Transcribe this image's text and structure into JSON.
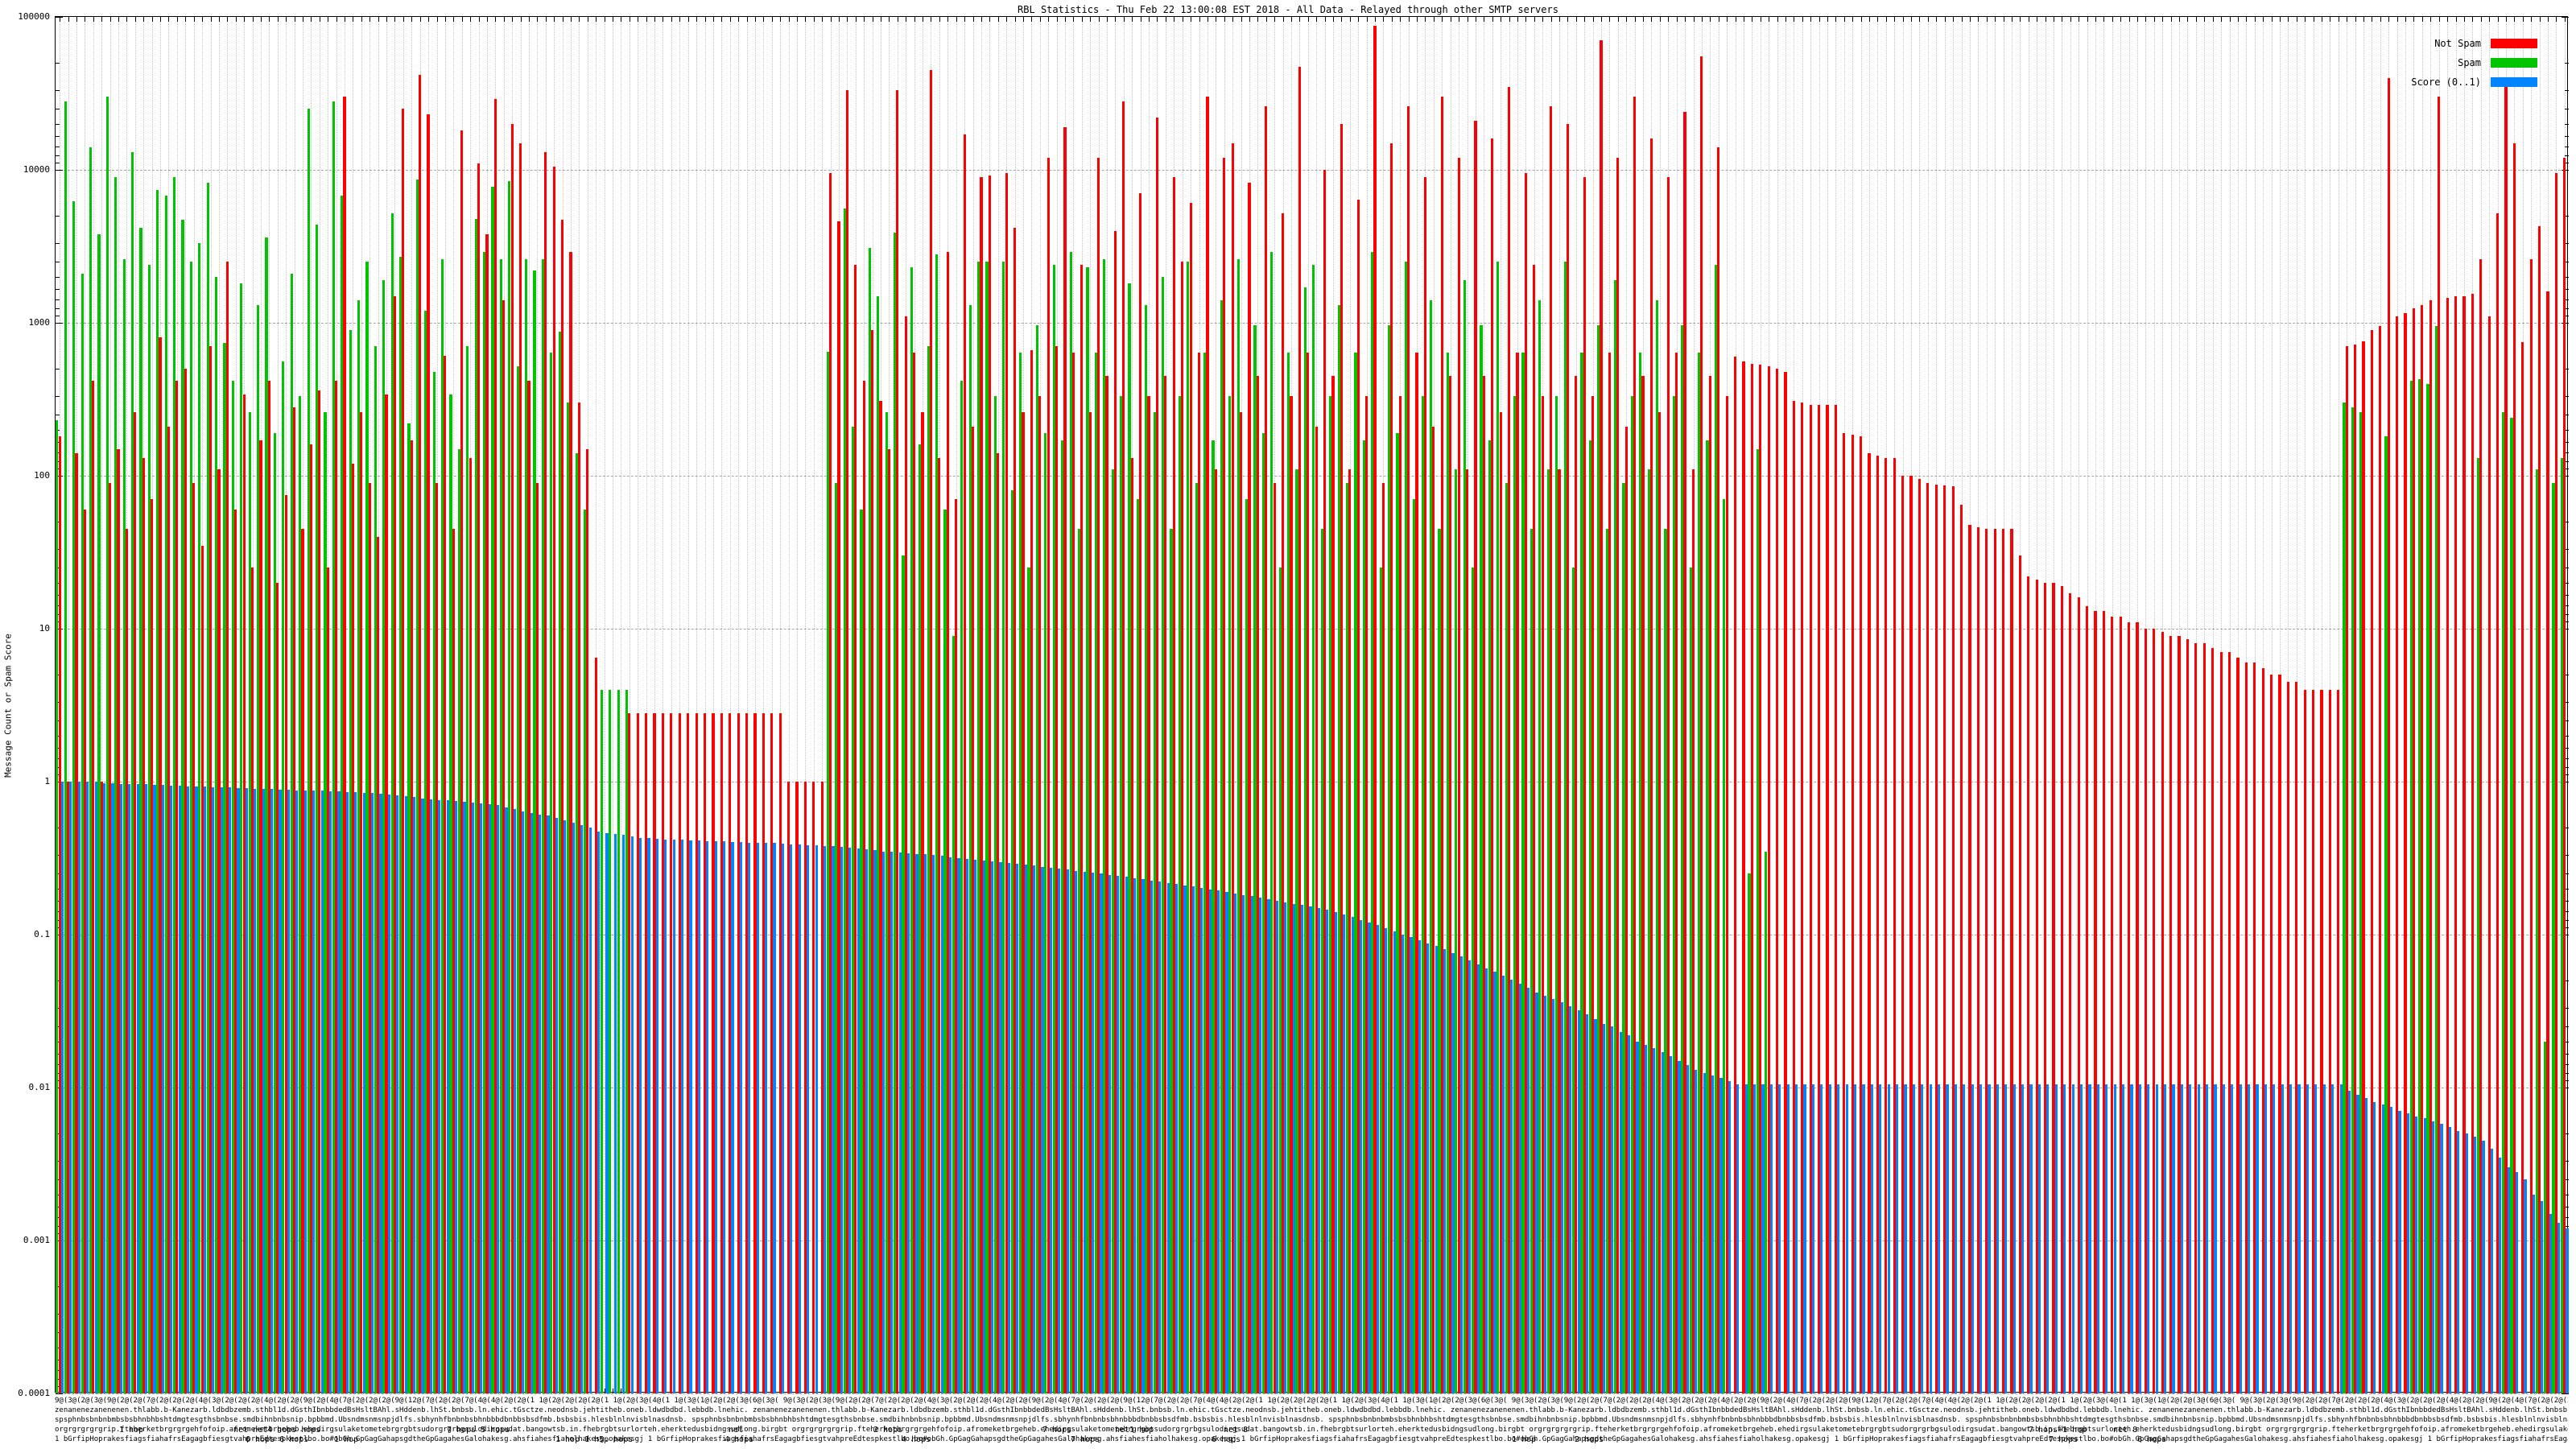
{
  "title": "RBL Statistics - Thu Feb 22 13:00:08 EST 2018 - All Data - Relayed through other SMTP servers",
  "y_axis": {
    "label": "Message Count or Spam Score",
    "ticks": [
      "100000",
      "10000",
      "1000",
      "100",
      "10",
      "1",
      "0.1",
      "0.01",
      "0.001",
      "0.0001"
    ]
  },
  "legend": {
    "items": [
      {
        "label": "Not Spam",
        "color": "#ff0000"
      },
      {
        "label": "Spam",
        "color": "#00c400"
      },
      {
        "label": "Score (0..1)",
        "color": "#0084ff"
      }
    ]
  },
  "x_axis": {
    "note": "~300 RBL host labels, heavily overlapped and illegible; readable fragments are hop counts",
    "texture_rows": [
      "9@(3@(2@(3@(9@(2@(2@(7@(2@(2@(2@(4@(3@(2@(2@(2@(4@(2@(2@(9@(2@(4@(7@(2@(2@(2@(9@(12@(7@(2@(2@(7@(4@(4@(2@(2@(1 1@(2@(2@(2@(2@(1 1@(2@(3@(4@(1 1@(3@(1@(2@(2@(3@(6@(3@(",
      "zenanenezanenenen.thlabb.b-Kanezarb.ldbdbzemb.sthbl1d.dGsthIbnbbdedBsHsltBAhl.sHddenb.lhSt.bnbsb.ln.ehic.tGsctze.neodnsb.jehtitheb.oneb.ldwdbdbd.lebbdb.lnehic.",
      "spsphnbsbnbnbmbsbsbhnbhbshtdmgtesgthsbnbse.smdbihnbnbsnip.bpbbmd.Ubsndmsnmsnpjdlfs.sbhynhfbnbnbsbhnbbbdbnbbsbsdfmb.bsbsbis.hlesblnlnvisblnasdnsb.",
      "orgrgrgrgrgrip.fteherketbrgrgrgehfofoip.afromeketbrgeheb.ehedirgsulaketometebrgrgbtsudorgrgrbgsulodirgsudat.bangowtsb.in.fhebrgbtsurlorteh.eherktedusbidngsudlong.birgbt",
      "1 bGrfipHoprakesfiagsfiahafrsEagagbfiesgtvahpreEdtespkestlbo.bo#obGh.GpGagGahapsgdtheGpGagahesGalohakesg.ahsfiahesfiaholhakesg.opakesgj"
    ],
    "hop_fragments": [
      {
        "text": "1 hop",
        "x": 148,
        "row": 3
      },
      {
        "text": "net net4 hops hops",
        "x": 290,
        "row": 3
      },
      {
        "text": "6 hops   6 hops",
        "x": 305,
        "row": 4
      },
      {
        "text": "1 hop",
        "x": 415,
        "row": 4
      },
      {
        "text": "7 hops   5 hops",
        "x": 555,
        "row": 3
      },
      {
        "text": "1 hop 1 h5p hops",
        "x": 690,
        "row": 4
      },
      {
        "text": "net",
        "x": 905,
        "row": 3
      },
      {
        "text": "4 hops",
        "x": 900,
        "row": 4
      },
      {
        "text": "2 hops",
        "x": 1085,
        "row": 3
      },
      {
        "text": "4 hops",
        "x": 1120,
        "row": 4
      },
      {
        "text": "7 hops",
        "x": 1295,
        "row": 3
      },
      {
        "text": "net1 hop",
        "x": 1385,
        "row": 3
      },
      {
        "text": "7 hops",
        "x": 1330,
        "row": 4
      },
      {
        "text": "net 8",
        "x": 1520,
        "row": 3
      },
      {
        "text": "6 hops",
        "x": 1505,
        "row": 4
      },
      {
        "text": "1 hop",
        "x": 1878,
        "row": 4
      },
      {
        "text": "2 hops",
        "x": 1956,
        "row": 4
      },
      {
        "text": "7 hops+1 hop",
        "x": 2520,
        "row": 3
      },
      {
        "text": "net 8",
        "x": 2625,
        "row": 3
      },
      {
        "text": "7 hops",
        "x": 2545,
        "row": 4
      },
      {
        "text": "6 hops",
        "x": 2655,
        "row": 4
      }
    ]
  },
  "chart_data": {
    "type": "bar",
    "title": "RBL Statistics - Thu Feb 22 13:00:08 EST 2018 - All Data - Relayed through other SMTP servers",
    "xlabel": "",
    "ylabel": "Message Count or Spam Score",
    "log_scale_y": true,
    "ylim": [
      0.0001,
      100000
    ],
    "grid": true,
    "legend_position": "top-right",
    "series": [
      {
        "name": "Not Spam",
        "color": "#ff0000",
        "values": [
          180,
          1,
          140,
          60,
          420,
          1,
          90,
          150,
          45,
          260,
          130,
          70,
          800,
          210,
          420,
          500,
          90,
          35,
          700,
          110,
          2500,
          60,
          340,
          25,
          170,
          420,
          20,
          75,
          280,
          45,
          160,
          360,
          25,
          420,
          30000,
          120,
          260,
          90,
          40,
          340,
          1500,
          25000,
          170,
          42000,
          23000,
          90,
          610,
          45,
          18000,
          130,
          11000,
          3800,
          29000,
          1400,
          20000,
          15000,
          420,
          90,
          13000,
          10500,
          4700,
          2900,
          300,
          150,
          6.5,
          0,
          0,
          0,
          2.8,
          2.8,
          2.8,
          2.8,
          2.8,
          2.8,
          2.8,
          2.8,
          2.8,
          2.8,
          2.8,
          2.8,
          2.8,
          2.8,
          2.8,
          2.8,
          2.8,
          2.8,
          2.8,
          1,
          1,
          1,
          1,
          1,
          9500,
          4600,
          33000,
          2400,
          420,
          900,
          310,
          150,
          33000,
          1100,
          640,
          260,
          45000,
          130,
          2900,
          70,
          17000,
          210,
          9000,
          9200,
          140,
          9500,
          4200,
          260,
          660,
          330,
          12000,
          700,
          19000,
          640,
          2400,
          260,
          12000,
          450,
          4000,
          28000,
          130,
          7000,
          330,
          22000,
          450,
          9000,
          2500,
          6100,
          640,
          30000,
          110,
          12000,
          15000,
          260,
          8200,
          450,
          26000,
          90,
          5200,
          330,
          47000,
          640,
          210,
          10000,
          450,
          20000,
          110,
          6400,
          330,
          88000,
          90,
          15000,
          330,
          26000,
          640,
          9000,
          210,
          30000,
          450,
          12000,
          110,
          21000,
          450,
          16000,
          260,
          35000,
          640,
          9500,
          2400,
          330,
          26000,
          110,
          20000,
          450,
          9000,
          330,
          70000,
          640,
          12000,
          210,
          30000,
          450,
          16000,
          260,
          9000,
          640,
          24000,
          110,
          55000,
          450,
          14000,
          330,
          600,
          560,
          540,
          530,
          520,
          500,
          480,
          310,
          300,
          290,
          290,
          290,
          290,
          190,
          185,
          180,
          140,
          135,
          130,
          130,
          100,
          100,
          95,
          90,
          88,
          86,
          85,
          65,
          48,
          46,
          45,
          45,
          45,
          45,
          30,
          22,
          21,
          20,
          20,
          19,
          17,
          16,
          14,
          13,
          13,
          12,
          12,
          11,
          11,
          10,
          10,
          9.5,
          9,
          9,
          8.5,
          8,
          8,
          7.5,
          7,
          7,
          6.5,
          6,
          6,
          5.5,
          5,
          5,
          4.5,
          4.5,
          4,
          4,
          4,
          4,
          4,
          700,
          720,
          760,
          900,
          950,
          40000,
          1100,
          1150,
          1250,
          1300,
          1400,
          30000,
          1450,
          1500,
          1500,
          1550,
          2600,
          1100,
          5200,
          35000,
          15000,
          750,
          2600,
          4300,
          1600,
          9500,
          12000
        ]
      },
      {
        "name": "Spam",
        "color": "#00c400",
        "values": [
          230,
          28000,
          6200,
          2100,
          14000,
          3800,
          30000,
          9000,
          2600,
          13000,
          4200,
          2400,
          7400,
          6800,
          9000,
          4700,
          2500,
          3300,
          8200,
          2000,
          740,
          420,
          1800,
          260,
          1300,
          3600,
          190,
          560,
          2100,
          330,
          25000,
          4400,
          260,
          28000,
          6800,
          900,
          1400,
          2500,
          700,
          1900,
          5200,
          2700,
          220,
          8600,
          1200,
          480,
          2600,
          340,
          150,
          700,
          4800,
          2900,
          7800,
          2600,
          8400,
          520,
          2600,
          2200,
          2600,
          640,
          880,
          300,
          140,
          60,
          0,
          4,
          4,
          4,
          4,
          0,
          0,
          0,
          0,
          0,
          0,
          0,
          0,
          0,
          0,
          0,
          0,
          0,
          0,
          0,
          0,
          0,
          0,
          0,
          0,
          0,
          0,
          0,
          650,
          90,
          5600,
          210,
          60,
          3100,
          1500,
          260,
          3900,
          30,
          2300,
          160,
          700,
          2800,
          60,
          9,
          420,
          1300,
          2500,
          2500,
          330,
          2500,
          80,
          640,
          25,
          960,
          190,
          2400,
          170,
          2900,
          45,
          2300,
          640,
          2600,
          110,
          330,
          1800,
          70,
          1300,
          260,
          2000,
          45,
          330,
          2500,
          90,
          640,
          170,
          1400,
          330,
          2600,
          70,
          960,
          190,
          2900,
          25,
          640,
          110,
          1700,
          2400,
          45,
          330,
          1300,
          90,
          640,
          170,
          2900,
          25,
          960,
          190,
          2500,
          70,
          330,
          1400,
          45,
          640,
          110,
          1900,
          25,
          960,
          170,
          2500,
          90,
          330,
          640,
          45,
          1400,
          110,
          330,
          2500,
          25,
          640,
          170,
          960,
          45,
          1900,
          90,
          330,
          640,
          110,
          1400,
          45,
          330,
          960,
          25,
          640,
          170,
          2400,
          70,
          0,
          0,
          0.25,
          150,
          0.35,
          0,
          0,
          0,
          0,
          0,
          0,
          0,
          0,
          0,
          0,
          0,
          0,
          0,
          0,
          0,
          0,
          0,
          0,
          0,
          0,
          0,
          0,
          0,
          0,
          0,
          0,
          0,
          0,
          0,
          0,
          0,
          0,
          0,
          0,
          0,
          0,
          0,
          0,
          0,
          0,
          0,
          0,
          0,
          0,
          0,
          0,
          0,
          0,
          0,
          0,
          0,
          0,
          0,
          0,
          0,
          0,
          0,
          0,
          0,
          0,
          0,
          0,
          0,
          0,
          0,
          0,
          0,
          0,
          300,
          280,
          260,
          0,
          0,
          180,
          0,
          0,
          420,
          430,
          400,
          950,
          0,
          0,
          0,
          0,
          130,
          0,
          0,
          260,
          240,
          0,
          0,
          110,
          0.02,
          90,
          130
        ]
      },
      {
        "name": "Score (0..1)",
        "color": "#0084ff",
        "values": [
          1,
          1,
          1,
          1,
          1,
          0.98,
          0.98,
          0.97,
          0.97,
          0.96,
          0.96,
          0.955,
          0.95,
          0.945,
          0.94,
          0.935,
          0.93,
          0.925,
          0.92,
          0.92,
          0.915,
          0.91,
          0.905,
          0.9,
          0.9,
          0.895,
          0.89,
          0.885,
          0.88,
          0.88,
          0.875,
          0.87,
          0.865,
          0.86,
          0.855,
          0.85,
          0.845,
          0.84,
          0.83,
          0.82,
          0.81,
          0.8,
          0.79,
          0.78,
          0.77,
          0.76,
          0.755,
          0.75,
          0.74,
          0.73,
          0.72,
          0.71,
          0.7,
          0.68,
          0.66,
          0.64,
          0.62,
          0.61,
          0.6,
          0.58,
          0.56,
          0.54,
          0.52,
          0.5,
          0.47,
          0.46,
          0.455,
          0.45,
          0.44,
          0.43,
          0.43,
          0.425,
          0.42,
          0.42,
          0.42,
          0.415,
          0.415,
          0.41,
          0.41,
          0.41,
          0.405,
          0.405,
          0.4,
          0.4,
          0.4,
          0.4,
          0.395,
          0.39,
          0.39,
          0.385,
          0.385,
          0.38,
          0.38,
          0.375,
          0.37,
          0.365,
          0.36,
          0.355,
          0.35,
          0.35,
          0.346,
          0.342,
          0.338,
          0.334,
          0.33,
          0.326,
          0.322,
          0.318,
          0.314,
          0.31,
          0.306,
          0.302,
          0.298,
          0.294,
          0.29,
          0.286,
          0.282,
          0.278,
          0.274,
          0.27,
          0.266,
          0.262,
          0.258,
          0.254,
          0.25,
          0.246,
          0.242,
          0.238,
          0.234,
          0.23,
          0.226,
          0.222,
          0.218,
          0.214,
          0.21,
          0.206,
          0.202,
          0.198,
          0.194,
          0.19,
          0.186,
          0.182,
          0.178,
          0.174,
          0.17,
          0.166,
          0.162,
          0.158,
          0.156,
          0.153,
          0.15,
          0.145,
          0.14,
          0.135,
          0.13,
          0.125,
          0.12,
          0.115,
          0.11,
          0.105,
          0.1,
          0.096,
          0.092,
          0.088,
          0.084,
          0.08,
          0.076,
          0.072,
          0.068,
          0.064,
          0.06,
          0.057,
          0.054,
          0.051,
          0.048,
          0.045,
          0.042,
          0.04,
          0.038,
          0.036,
          0.034,
          0.032,
          0.03,
          0.028,
          0.026,
          0.025,
          0.023,
          0.022,
          0.02,
          0.019,
          0.018,
          0.017,
          0.016,
          0.015,
          0.014,
          0.013,
          0.0125,
          0.012,
          0.0115,
          0.011,
          0.0105,
          0.0105,
          0.0105,
          0.0105,
          0.0105,
          0.0105,
          0.0105,
          0.0105,
          0.0105,
          0.0105,
          0.0105,
          0.0105,
          0.0105,
          0.0105,
          0.0105,
          0.0105,
          0.0105,
          0.0105,
          0.0105,
          0.0105,
          0.0105,
          0.0105,
          0.0105,
          0.0105,
          0.0105,
          0.0105,
          0.0105,
          0.0105,
          0.0105,
          0.0105,
          0.0105,
          0.0105,
          0.0105,
          0.0105,
          0.0105,
          0.0105,
          0.0105,
          0.0105,
          0.0105,
          0.0105,
          0.0105,
          0.0105,
          0.0105,
          0.0105,
          0.0105,
          0.0105,
          0.0105,
          0.0105,
          0.0105,
          0.0105,
          0.0105,
          0.0105,
          0.0105,
          0.0105,
          0.0105,
          0.0105,
          0.0105,
          0.0105,
          0.0105,
          0.0105,
          0.0105,
          0.0105,
          0.0105,
          0.0105,
          0.0105,
          0.0105,
          0.0105,
          0.0105,
          0.0105,
          0.0105,
          0.0105,
          0.0105,
          0.0105,
          0.0095,
          0.009,
          0.0085,
          0.008,
          0.0078,
          0.0075,
          0.007,
          0.0068,
          0.0065,
          0.0063,
          0.006,
          0.0058,
          0.0055,
          0.0052,
          0.005,
          0.0048,
          0.0045,
          0.004,
          0.0035,
          0.003,
          0.0028,
          0.0025,
          0.002,
          0.0018,
          0.0015,
          0.0013,
          0.0012
        ]
      }
    ]
  }
}
